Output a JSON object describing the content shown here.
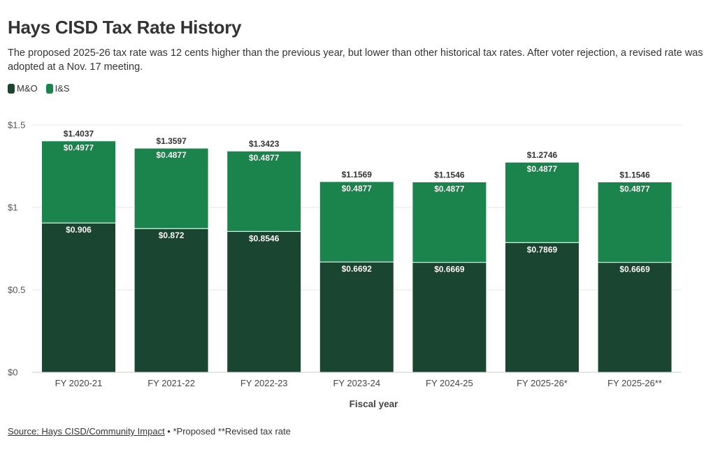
{
  "title": "Hays CISD Tax Rate History",
  "subtitle": "The proposed 2025-26 tax rate was 12 cents higher than the previous year, but lower than other historical tax rates. After voter rejection, a revised rate was adopted at a Nov. 17 meeting.",
  "legend": [
    {
      "label": "M&O",
      "color": "#1a4530"
    },
    {
      "label": "I&S",
      "color": "#1b834c"
    }
  ],
  "footer": {
    "source": "Source: Hays CISD/Community Impact",
    "separator": " • ",
    "note": "*Proposed **Revised tax rate"
  },
  "chart_data": {
    "type": "bar",
    "stacked": true,
    "title": "Hays CISD Tax Rate History",
    "xlabel": "Fiscal year",
    "ylabel": "",
    "ylim": [
      0,
      1.5
    ],
    "yticks": [
      {
        "value": 0,
        "label": "$0"
      },
      {
        "value": 0.5,
        "label": "$0.5"
      },
      {
        "value": 1,
        "label": "$1"
      },
      {
        "value": 1.5,
        "label": "$1.5"
      }
    ],
    "categories": [
      "FY 2020-21",
      "FY 2021-22",
      "FY 2022-23",
      "FY 2023-24",
      "FY 2024-25",
      "FY 2025-26*",
      "FY 2025-26**"
    ],
    "series": [
      {
        "name": "M&O",
        "color": "#1a4530",
        "values": [
          0.906,
          0.872,
          0.8546,
          0.6692,
          0.6669,
          0.7869,
          0.6669
        ],
        "labels": [
          "$0.906",
          "$0.872",
          "$0.8546",
          "$0.6692",
          "$0.6669",
          "$0.7869",
          "$0.6669"
        ]
      },
      {
        "name": "I&S",
        "color": "#1b834c",
        "values": [
          0.4977,
          0.4877,
          0.4877,
          0.4877,
          0.4877,
          0.4877,
          0.4877
        ],
        "labels": [
          "$0.4977",
          "$0.4877",
          "$0.4877",
          "$0.4877",
          "$0.4877",
          "$0.4877",
          "$0.4877"
        ]
      }
    ],
    "totals": [
      1.4037,
      1.3597,
      1.3423,
      1.1569,
      1.1546,
      1.2746,
      1.1546
    ],
    "total_labels": [
      "$1.4037",
      "$1.3597",
      "$1.3423",
      "$1.1569",
      "$1.1546",
      "$1.2746",
      "$1.1546"
    ],
    "grid": true,
    "legend_position": "top-left"
  }
}
